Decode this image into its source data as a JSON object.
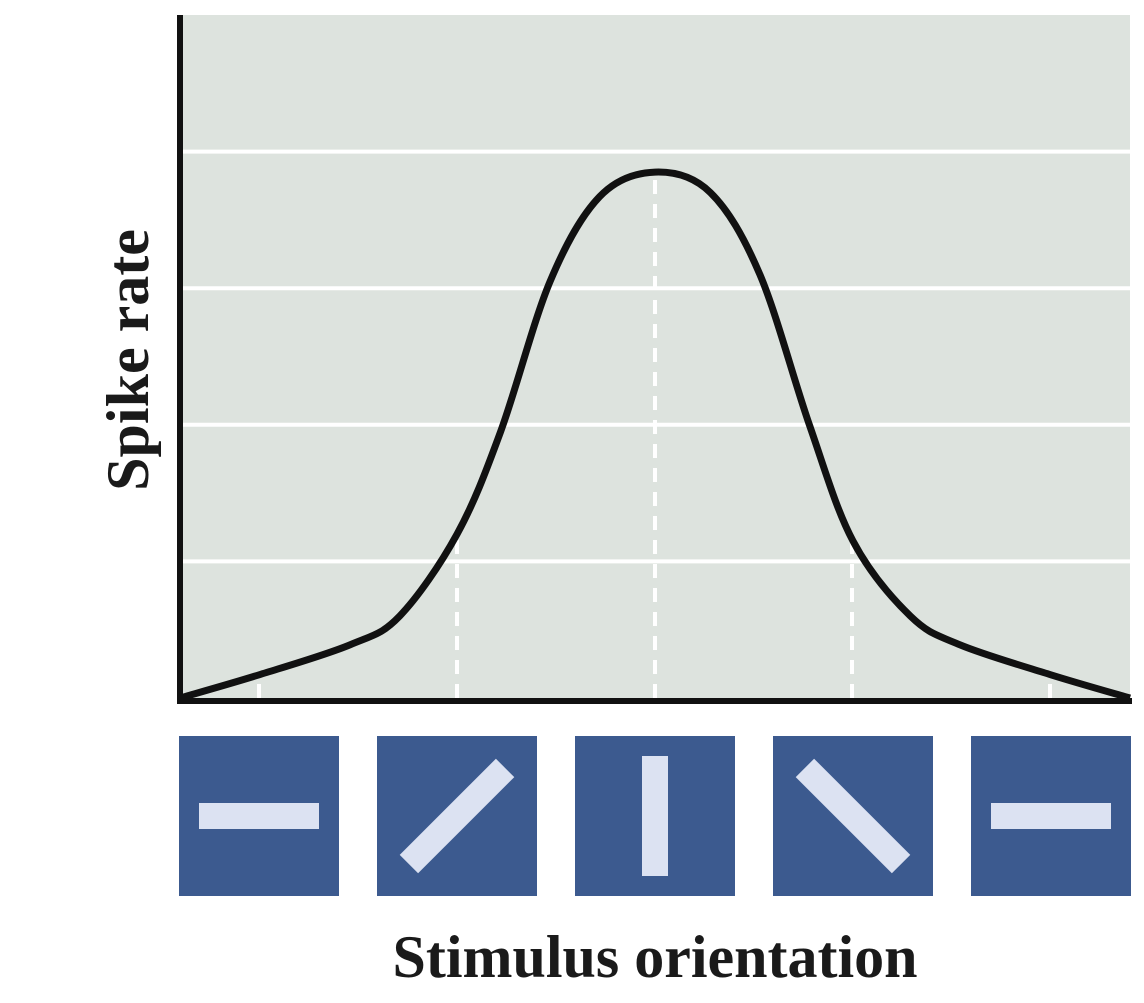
{
  "chart_data": {
    "type": "line",
    "x_label": "Stimulus orientation",
    "y_label": "Spike rate",
    "x": [
      -0.4,
      0,
      0.46,
      0.71,
      1,
      1.22,
      1.47,
      1.72,
      2,
      2.28,
      2.53,
      2.78,
      3,
      3.29,
      3.54,
      4,
      4.4
    ],
    "series": [
      {
        "color": "#111111",
        "values": [
          0,
          0.17,
          0.39,
          0.6,
          1.2,
          1.95,
          3.05,
          3.67,
          3.85,
          3.7,
          3.1,
          2.0,
          1.15,
          0.6,
          0.39,
          0.17,
          0
        ]
      }
    ],
    "xlim": [
      -0.4,
      4.4
    ],
    "ylim": [
      0,
      5
    ],
    "yticks": [
      1,
      2,
      3,
      4
    ],
    "grid": true
  }
}
